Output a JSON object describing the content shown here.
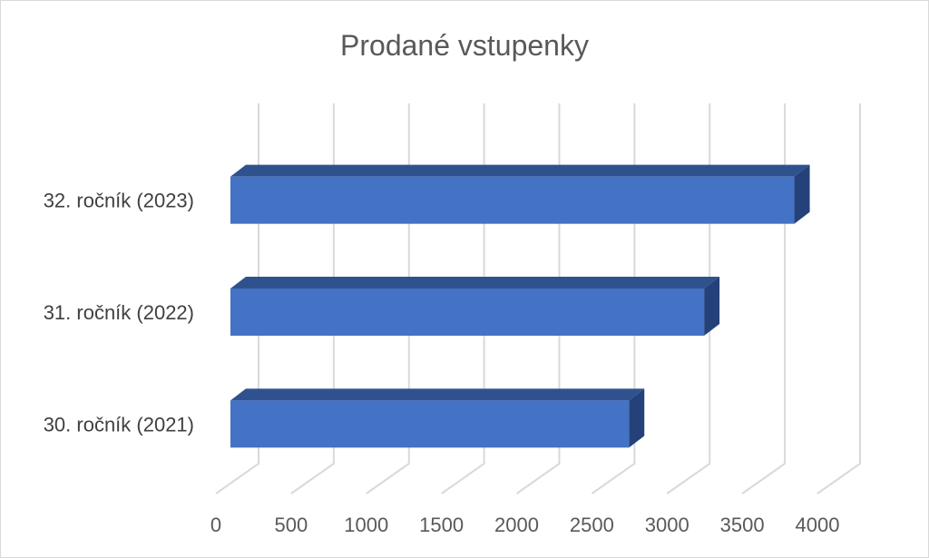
{
  "chart_data": {
    "type": "bar",
    "orientation": "horizontal",
    "style": "3d",
    "title": "Prodané vstupenky",
    "categories": [
      "30. ročník (2021)",
      "31. ročník (2022)",
      "32. ročník (2023)"
    ],
    "values": [
      2650,
      3150,
      3750
    ],
    "xlim": [
      0,
      4000
    ],
    "xticks": [
      "0",
      "500",
      "1000",
      "1500",
      "2000",
      "2500",
      "3000",
      "3500",
      "4000"
    ],
    "grid": true,
    "legend": "none",
    "colors": {
      "bar_front": "#4472c4",
      "bar_top": "#2f528f",
      "bar_side": "#24417a",
      "grid": "#d9d9d9"
    }
  }
}
